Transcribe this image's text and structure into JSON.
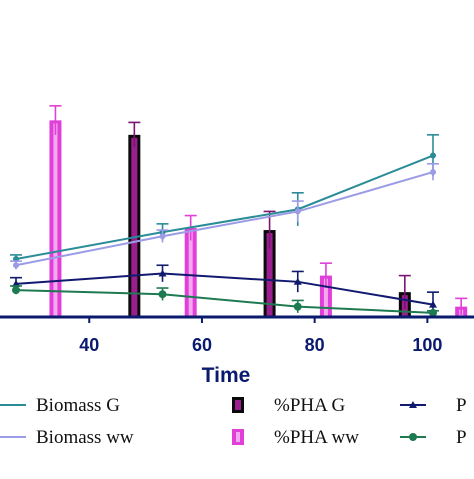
{
  "chart_data": {
    "type": "bar",
    "xlabel": "Time",
    "ylabel": "",
    "title": "",
    "x_ticks": [
      40,
      60,
      80,
      100
    ],
    "xlim": [
      27,
      108
    ],
    "ylim": [
      0,
      100
    ],
    "grid": false,
    "legend_position": "bottom",
    "series": [
      {
        "name": "Biomass G",
        "kind": "line",
        "color": "#2a8c96",
        "marker": "line",
        "x": [
          27,
          53,
          77,
          101
        ],
        "y": [
          28,
          41,
          52,
          78
        ],
        "err": [
          2,
          4,
          8,
          10
        ]
      },
      {
        "name": "Biomass ww",
        "kind": "line",
        "color": "#9b9be6",
        "marker": "line",
        "x": [
          27,
          53,
          77,
          101
        ],
        "y": [
          25,
          39,
          51,
          70
        ],
        "err": [
          2,
          3,
          5,
          4
        ]
      },
      {
        "name": "%PHA G",
        "kind": "bar",
        "color": "#9b1f8f",
        "x": [
          48,
          72,
          96
        ],
        "y": [
          88,
          42,
          12
        ],
        "err": [
          6,
          9,
          8
        ]
      },
      {
        "name": "%PHA ww",
        "kind": "bar",
        "color": "#e03fd8",
        "x": [
          34,
          58,
          82,
          106
        ],
        "y": [
          95,
          43,
          20,
          5
        ],
        "err": [
          7,
          6,
          6,
          4
        ]
      },
      {
        "name": "P",
        "kind": "line",
        "color": "#111a6e",
        "marker": "triangle",
        "x": [
          27,
          53,
          77,
          101
        ],
        "y": [
          16,
          21,
          17,
          6
        ],
        "err": [
          3,
          4,
          5,
          6
        ]
      },
      {
        "name": "P",
        "kind": "line",
        "color": "#1e7a50",
        "marker": "circle",
        "x": [
          27,
          53,
          77,
          101
        ],
        "y": [
          13,
          11,
          5,
          2
        ],
        "err": [
          2,
          3,
          3,
          1
        ]
      }
    ]
  }
}
